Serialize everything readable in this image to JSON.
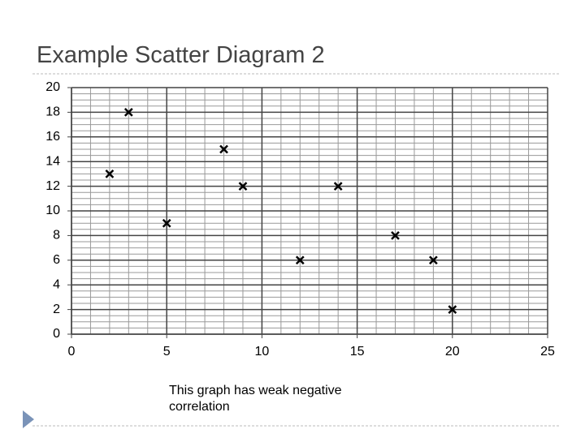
{
  "chart_data": {
    "type": "scatter",
    "title": "Example Scatter Diagram 2",
    "x": [
      2,
      3,
      5,
      8,
      9,
      12,
      14,
      17,
      19,
      20
    ],
    "values": [
      13,
      18,
      9,
      15,
      12,
      6,
      12,
      8,
      6,
      2
    ],
    "color": "#000000",
    "xlim": [
      0,
      25
    ],
    "xticks": [
      0,
      5,
      10,
      15,
      20,
      25
    ],
    "ylim": [
      0,
      20
    ],
    "yticks": [
      0,
      2,
      4,
      6,
      8,
      10,
      12,
      14,
      16,
      18,
      20
    ],
    "grid": true,
    "annotation": "This graph has weak negative correlation"
  }
}
